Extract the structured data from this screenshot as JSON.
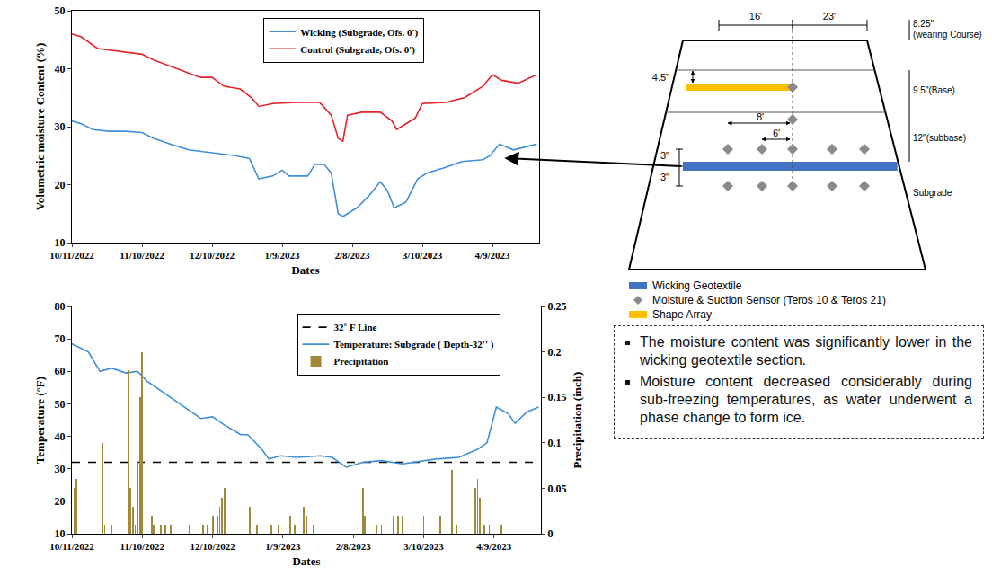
{
  "chart_data": [
    {
      "type": "line",
      "xlabel": "Dates",
      "ylabel": "Volumetric moisture Content (%)",
      "xlim": [
        "2022-10-11",
        "2023-04-29"
      ],
      "xticks": [
        {
          "value": "2022-10-11",
          "label": "10/11/2022"
        },
        {
          "value": "2022-11-10",
          "label": "11/10/2022"
        },
        {
          "value": "2022-12-10",
          "label": "12/10/2022"
        },
        {
          "value": "2023-01-09",
          "label": "1/9/2023"
        },
        {
          "value": "2023-02-08",
          "label": "2/8/2023"
        },
        {
          "value": "2023-03-10",
          "label": "3/10/2023"
        },
        {
          "value": "2023-04-09",
          "label": "4/9/2023"
        }
      ],
      "ylim": [
        10,
        50
      ],
      "yticks": [
        10,
        20,
        30,
        40,
        50
      ],
      "grid": false,
      "legend": "top",
      "series": [
        {
          "name": "Wicking (Subgrade, Ofs. 0')",
          "color": "#3f8fd6",
          "x": [
            "2022-10-11",
            "2022-10-15",
            "2022-10-20",
            "2022-10-27",
            "2022-11-03",
            "2022-11-10",
            "2022-11-15",
            "2022-11-22",
            "2022-11-30",
            "2022-12-10",
            "2022-12-20",
            "2022-12-26",
            "2022-12-30",
            "2023-01-05",
            "2023-01-09",
            "2023-01-12",
            "2023-01-20",
            "2023-01-23",
            "2023-01-27",
            "2023-01-30",
            "2023-02-02",
            "2023-02-04",
            "2023-02-10",
            "2023-02-15",
            "2023-02-20",
            "2023-02-23",
            "2023-02-26",
            "2023-03-03",
            "2023-03-08",
            "2023-03-12",
            "2023-03-20",
            "2023-03-27",
            "2023-04-05",
            "2023-04-08",
            "2023-04-12",
            "2023-04-18",
            "2023-04-23",
            "2023-04-28"
          ],
          "values": [
            31,
            30.5,
            29.5,
            29.2,
            29.2,
            29,
            28,
            27,
            26,
            25.5,
            25,
            24.5,
            21,
            21.5,
            22.5,
            21.5,
            21.5,
            23.5,
            23.5,
            22,
            15,
            14.5,
            16,
            18,
            20.5,
            19,
            16,
            17,
            21,
            22,
            23,
            24,
            24.3,
            25,
            27,
            26,
            26.5,
            27
          ]
        },
        {
          "name": "Control (Subgrade, Ofs. 0')",
          "color": "#e0262a",
          "x": [
            "2022-10-11",
            "2022-10-15",
            "2022-10-22",
            "2022-11-01",
            "2022-11-10",
            "2022-11-15",
            "2022-11-25",
            "2022-12-05",
            "2022-12-10",
            "2022-12-15",
            "2022-12-22",
            "2022-12-27",
            "2022-12-30",
            "2023-01-05",
            "2023-01-15",
            "2023-01-25",
            "2023-01-30",
            "2023-02-02",
            "2023-02-04",
            "2023-02-06",
            "2023-02-12",
            "2023-02-20",
            "2023-02-25",
            "2023-02-27",
            "2023-03-03",
            "2023-03-07",
            "2023-03-10",
            "2023-03-20",
            "2023-03-28",
            "2023-04-05",
            "2023-04-09",
            "2023-04-13",
            "2023-04-20",
            "2023-04-25",
            "2023-04-28"
          ],
          "values": [
            46,
            45.5,
            43.5,
            43,
            42.5,
            41.5,
            40,
            38.5,
            38.5,
            37,
            36.5,
            35,
            33.5,
            34,
            34.2,
            34.2,
            32,
            28,
            27.5,
            32,
            32.5,
            32.5,
            31,
            29.5,
            30.5,
            31.5,
            34,
            34.2,
            35,
            37,
            39,
            38,
            37.5,
            38.5,
            39
          ]
        }
      ]
    },
    {
      "type": "line",
      "xlabel": "Dates",
      "ylabel": "Temperature (°F)",
      "y2label": "Precipitation (inch)",
      "xlim": [
        "2022-10-11",
        "2023-04-29"
      ],
      "xticks": [
        {
          "value": "2022-10-11",
          "label": "10/11/2022"
        },
        {
          "value": "2022-11-10",
          "label": "11/10/2022"
        },
        {
          "value": "2022-12-10",
          "label": "12/10/2022"
        },
        {
          "value": "2023-01-09",
          "label": "1/9/2023"
        },
        {
          "value": "2023-02-08",
          "label": "2/8/2023"
        },
        {
          "value": "2023-03-10",
          "label": "3/10/2023"
        },
        {
          "value": "2023-04-09",
          "label": "4/9/2023"
        }
      ],
      "ylim": [
        10,
        80
      ],
      "yticks": [
        10,
        20,
        30,
        40,
        50,
        60,
        70,
        80
      ],
      "y2lim": [
        0,
        0.25
      ],
      "y2ticks": [
        0,
        0.05,
        0.1,
        0.15,
        0.2,
        0.25
      ],
      "grid": false,
      "legend": "top",
      "series": [
        {
          "name": "32˚ F Line",
          "color": "#000000",
          "line_style": "dash",
          "x": [
            "2022-10-11",
            "2023-04-29"
          ],
          "values": [
            32,
            32
          ]
        },
        {
          "name": "Temperature: Subgrade ( Depth-32'' )",
          "color": "#3f8fd6",
          "x": [
            "2022-10-11",
            "2022-10-18",
            "2022-10-23",
            "2022-10-28",
            "2022-11-03",
            "2022-11-08",
            "2022-11-12",
            "2022-11-20",
            "2022-11-30",
            "2022-12-05",
            "2022-12-10",
            "2022-12-15",
            "2022-12-22",
            "2022-12-25",
            "2022-12-31",
            "2023-01-03",
            "2023-01-08",
            "2023-01-15",
            "2023-01-25",
            "2023-01-30",
            "2023-02-05",
            "2023-02-12",
            "2023-02-20",
            "2023-03-01",
            "2023-03-15",
            "2023-03-25",
            "2023-04-02",
            "2023-04-06",
            "2023-04-10",
            "2023-04-15",
            "2023-04-18",
            "2023-04-23",
            "2023-04-28"
          ],
          "values": [
            68.5,
            66,
            60,
            61,
            59.5,
            60,
            57,
            53,
            48,
            45.5,
            46,
            43.5,
            40.5,
            40.5,
            36,
            33,
            34,
            33.5,
            34,
            33.5,
            30.5,
            32,
            32.5,
            31.5,
            33,
            33.5,
            36,
            38,
            49,
            47,
            44,
            47.5,
            49
          ]
        },
        {
          "name": "Precipitation",
          "type": "bar",
          "axis": "y2",
          "color": "#a08a3a",
          "x": [
            "2022-10-12",
            "2022-10-13",
            "2022-10-20",
            "2022-10-24",
            "2022-10-25",
            "2022-10-28",
            "2022-11-04",
            "2022-11-05",
            "2022-11-06",
            "2022-11-07",
            "2022-11-08",
            "2022-11-09",
            "2022-11-10",
            "2022-11-14",
            "2022-11-15",
            "2022-11-18",
            "2022-11-20",
            "2022-11-22",
            "2022-11-30",
            "2022-12-06",
            "2022-12-08",
            "2022-12-10",
            "2022-12-12",
            "2022-12-13",
            "2022-12-14",
            "2022-12-15",
            "2022-12-26",
            "2022-12-29",
            "2023-01-04",
            "2023-01-07",
            "2023-01-12",
            "2023-01-14",
            "2023-01-18",
            "2023-01-19",
            "2023-01-22",
            "2023-02-12",
            "2023-02-13",
            "2023-02-18",
            "2023-02-20",
            "2023-02-25",
            "2023-02-27",
            "2023-03-01",
            "2023-03-10",
            "2023-03-17",
            "2023-03-22",
            "2023-03-24",
            "2023-04-01",
            "2023-04-02",
            "2023-04-03",
            "2023-04-05",
            "2023-04-07",
            "2023-04-12"
          ],
          "values": [
            0.05,
            0.06,
            0.01,
            0.1,
            0.01,
            0.01,
            0.18,
            0.05,
            0.03,
            0.01,
            0.08,
            0.15,
            0.2,
            0.02,
            0.01,
            0.01,
            0.01,
            0.01,
            0.01,
            0.01,
            0.01,
            0.02,
            0.02,
            0.03,
            0.04,
            0.05,
            0.03,
            0.01,
            0.01,
            0.01,
            0.02,
            0.01,
            0.03,
            0.02,
            0.01,
            0.05,
            0.02,
            0.01,
            0.01,
            0.02,
            0.02,
            0.02,
            0.02,
            0.02,
            0.07,
            0.01,
            0.05,
            0.06,
            0.04,
            0.01,
            0.01,
            0.01
          ]
        }
      ]
    }
  ],
  "diagram": {
    "widths": [
      "16'",
      "23'"
    ],
    "layer_labels": [
      [
        "8.25\"",
        "(wearing Course)"
      ],
      [
        "9.5\"(Base)"
      ],
      [
        "12\"(subbase)"
      ],
      [
        "Subgrade"
      ]
    ],
    "shape_array_depth": "4.5\"",
    "sensor_offsets": [
      "8'",
      "6'"
    ],
    "geotextile_spacing": [
      "3\"",
      "3\""
    ],
    "legend": [
      {
        "label": "Wicking Geotextile",
        "marker": "band",
        "color": "#4472c4"
      },
      {
        "label": "Moisture & Suction Sensor (Teros 10 & Teros 21)",
        "marker": "diamond",
        "color": "#8a8a8a"
      },
      {
        "label": "Shape Array",
        "marker": "band",
        "color": "#ffc000"
      }
    ]
  },
  "notes": [
    "The moisture content was significantly lower in the wicking geotextile section.",
    "Moisture content decreased considerably during sub-freezing temperatures, as water underwent a phase change to form ice."
  ]
}
